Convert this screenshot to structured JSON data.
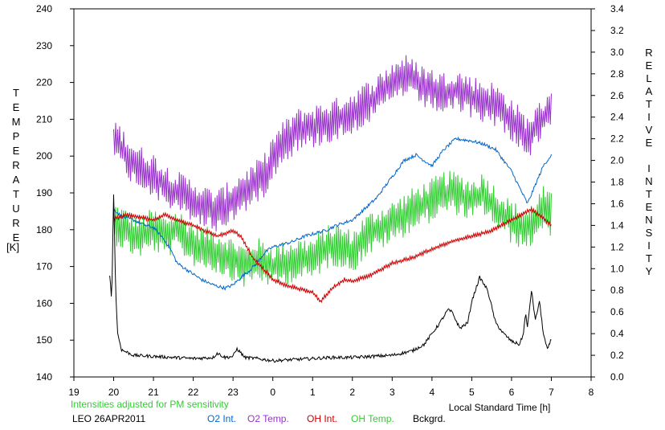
{
  "chart_data": {
    "type": "line",
    "left_axis": {
      "title_letters": [
        "T",
        "E",
        "M",
        "P",
        "E",
        "R",
        "A",
        "T",
        "U",
        "R",
        "E"
      ],
      "unit": "[K]",
      "range": [
        140,
        240
      ],
      "ticks": [
        "140",
        "150",
        "160",
        "170",
        "180",
        "190",
        "200",
        "210",
        "220",
        "230",
        "240"
      ]
    },
    "right_axis": {
      "title_letters": [
        "R",
        "E",
        "L",
        "A",
        "T",
        "I",
        "V",
        "E",
        "",
        "I",
        "N",
        "T",
        "E",
        "N",
        "S",
        "I",
        "T",
        "Y"
      ],
      "range": [
        0.0,
        3.4
      ],
      "ticks": [
        "0.0",
        "0.2",
        "0.4",
        "0.6",
        "0.8",
        "1.0",
        "1.2",
        "1.4",
        "1.6",
        "1.8",
        "2.0",
        "2.2",
        "2.4",
        "2.6",
        "2.8",
        "3.0",
        "3.2",
        "3.4"
      ]
    },
    "x_axis": {
      "label": "Local Standard Time [h]",
      "range": [
        19,
        32
      ],
      "ticks": [
        "19",
        "20",
        "21",
        "22",
        "23",
        "0",
        "1",
        "2",
        "3",
        "4",
        "5",
        "6",
        "7",
        "8"
      ]
    },
    "note": "Intensities adjusted for PM sensitivity",
    "station": "LEO 26APR2011",
    "series": [
      {
        "name": "O2 Int.",
        "color": "#0066cc",
        "axis": "right",
        "x": [
          20.0,
          20.2,
          20.5,
          20.8,
          21.0,
          21.2,
          21.4,
          21.6,
          21.8,
          22.0,
          22.2,
          22.5,
          22.8,
          23.0,
          23.2,
          23.4,
          23.6,
          23.8,
          24.0,
          24.2,
          24.5,
          24.8,
          25.0,
          25.3,
          25.6,
          26.0,
          26.3,
          26.6,
          27.0,
          27.3,
          27.6,
          28.0,
          28.3,
          28.6,
          29.0,
          29.3,
          29.6,
          30.0,
          30.4,
          30.8,
          31.0
        ],
        "y": [
          1.55,
          1.48,
          1.45,
          1.4,
          1.38,
          1.3,
          1.2,
          1.05,
          1.0,
          0.95,
          0.9,
          0.85,
          0.82,
          0.85,
          0.92,
          0.98,
          1.05,
          1.15,
          1.2,
          1.22,
          1.25,
          1.3,
          1.32,
          1.35,
          1.4,
          1.45,
          1.55,
          1.65,
          1.85,
          2.0,
          2.05,
          1.95,
          2.1,
          2.2,
          2.18,
          2.15,
          2.1,
          1.9,
          1.6,
          1.95,
          2.05
        ]
      },
      {
        "name": "O2 Temp.",
        "color": "#9933cc",
        "axis": "left",
        "x": [
          20.0,
          20.2,
          20.5,
          20.8,
          21.0,
          21.3,
          21.6,
          22.0,
          22.3,
          22.6,
          23.0,
          23.2,
          23.5,
          23.8,
          24.0,
          24.3,
          24.6,
          25.0,
          25.3,
          25.6,
          26.0,
          26.3,
          26.6,
          27.0,
          27.3,
          27.6,
          28.0,
          28.3,
          28.6,
          29.0,
          29.3,
          29.6,
          30.0,
          30.4,
          30.8,
          31.0
        ],
        "y": [
          205,
          202,
          198,
          196,
          195,
          192,
          190,
          188,
          186,
          185,
          188,
          190,
          192,
          195,
          200,
          204,
          207,
          208,
          209,
          210,
          212,
          214,
          216,
          220,
          222,
          220,
          218,
          217,
          218,
          216,
          215,
          214,
          210,
          205,
          210,
          214
        ],
        "amp": 6
      },
      {
        "name": "OH Int.",
        "color": "#cc0000",
        "axis": "right",
        "x": [
          20.0,
          20.3,
          20.6,
          21.0,
          21.3,
          21.6,
          22.0,
          22.3,
          22.6,
          23.0,
          23.2,
          23.5,
          23.8,
          24.0,
          24.3,
          24.6,
          25.0,
          25.2,
          25.5,
          25.8,
          26.0,
          26.5,
          27.0,
          27.5,
          28.0,
          28.5,
          29.0,
          29.5,
          30.0,
          30.5,
          31.0
        ],
        "y": [
          1.46,
          1.5,
          1.48,
          1.45,
          1.5,
          1.45,
          1.4,
          1.35,
          1.3,
          1.35,
          1.3,
          1.1,
          0.98,
          0.9,
          0.85,
          0.82,
          0.78,
          0.7,
          0.82,
          0.9,
          0.88,
          0.95,
          1.05,
          1.1,
          1.18,
          1.25,
          1.3,
          1.35,
          1.45,
          1.55,
          1.4
        ],
        "amp": 0.02
      },
      {
        "name": "OH Temp.",
        "color": "#33cc33",
        "axis": "left",
        "x": [
          20.0,
          20.3,
          20.6,
          21.0,
          21.3,
          21.6,
          22.0,
          22.3,
          22.6,
          23.0,
          23.3,
          23.6,
          24.0,
          24.3,
          24.6,
          25.0,
          25.3,
          25.6,
          26.0,
          26.3,
          26.6,
          27.0,
          27.3,
          27.6,
          28.0,
          28.3,
          28.6,
          29.0,
          29.3,
          29.6,
          30.0,
          30.4,
          30.8,
          31.0
        ],
        "y": [
          182,
          180,
          178,
          180,
          178,
          180,
          176,
          175,
          174,
          172,
          170,
          172,
          170,
          171,
          172,
          172,
          175,
          176,
          174,
          178,
          180,
          182,
          184,
          186,
          188,
          190,
          190,
          188,
          190,
          186,
          182,
          180,
          186,
          184
        ],
        "amp": 6
      },
      {
        "name": "Bckgrd.",
        "color": "#000000",
        "axis": "right",
        "x": [
          19.9,
          19.95,
          20.0,
          20.05,
          20.1,
          20.2,
          20.5,
          21.0,
          21.5,
          22.0,
          22.5,
          22.6,
          22.8,
          23.0,
          23.1,
          23.3,
          23.6,
          24.0,
          24.5,
          25.0,
          25.5,
          26.0,
          26.5,
          27.0,
          27.5,
          27.8,
          28.0,
          28.2,
          28.4,
          28.5,
          28.7,
          28.9,
          29.0,
          29.2,
          29.4,
          29.6,
          29.8,
          30.0,
          30.2,
          30.3,
          30.35,
          30.4,
          30.5,
          30.6,
          30.7,
          30.8,
          30.9,
          31.0
        ],
        "y": [
          0.95,
          0.7,
          1.7,
          0.8,
          0.4,
          0.25,
          0.2,
          0.19,
          0.18,
          0.17,
          0.18,
          0.22,
          0.18,
          0.19,
          0.26,
          0.18,
          0.17,
          0.15,
          0.16,
          0.17,
          0.18,
          0.18,
          0.19,
          0.2,
          0.24,
          0.3,
          0.4,
          0.5,
          0.62,
          0.6,
          0.45,
          0.5,
          0.7,
          0.92,
          0.8,
          0.5,
          0.4,
          0.33,
          0.3,
          0.4,
          0.6,
          0.45,
          0.8,
          0.52,
          0.7,
          0.4,
          0.25,
          0.35
        ]
      }
    ]
  }
}
